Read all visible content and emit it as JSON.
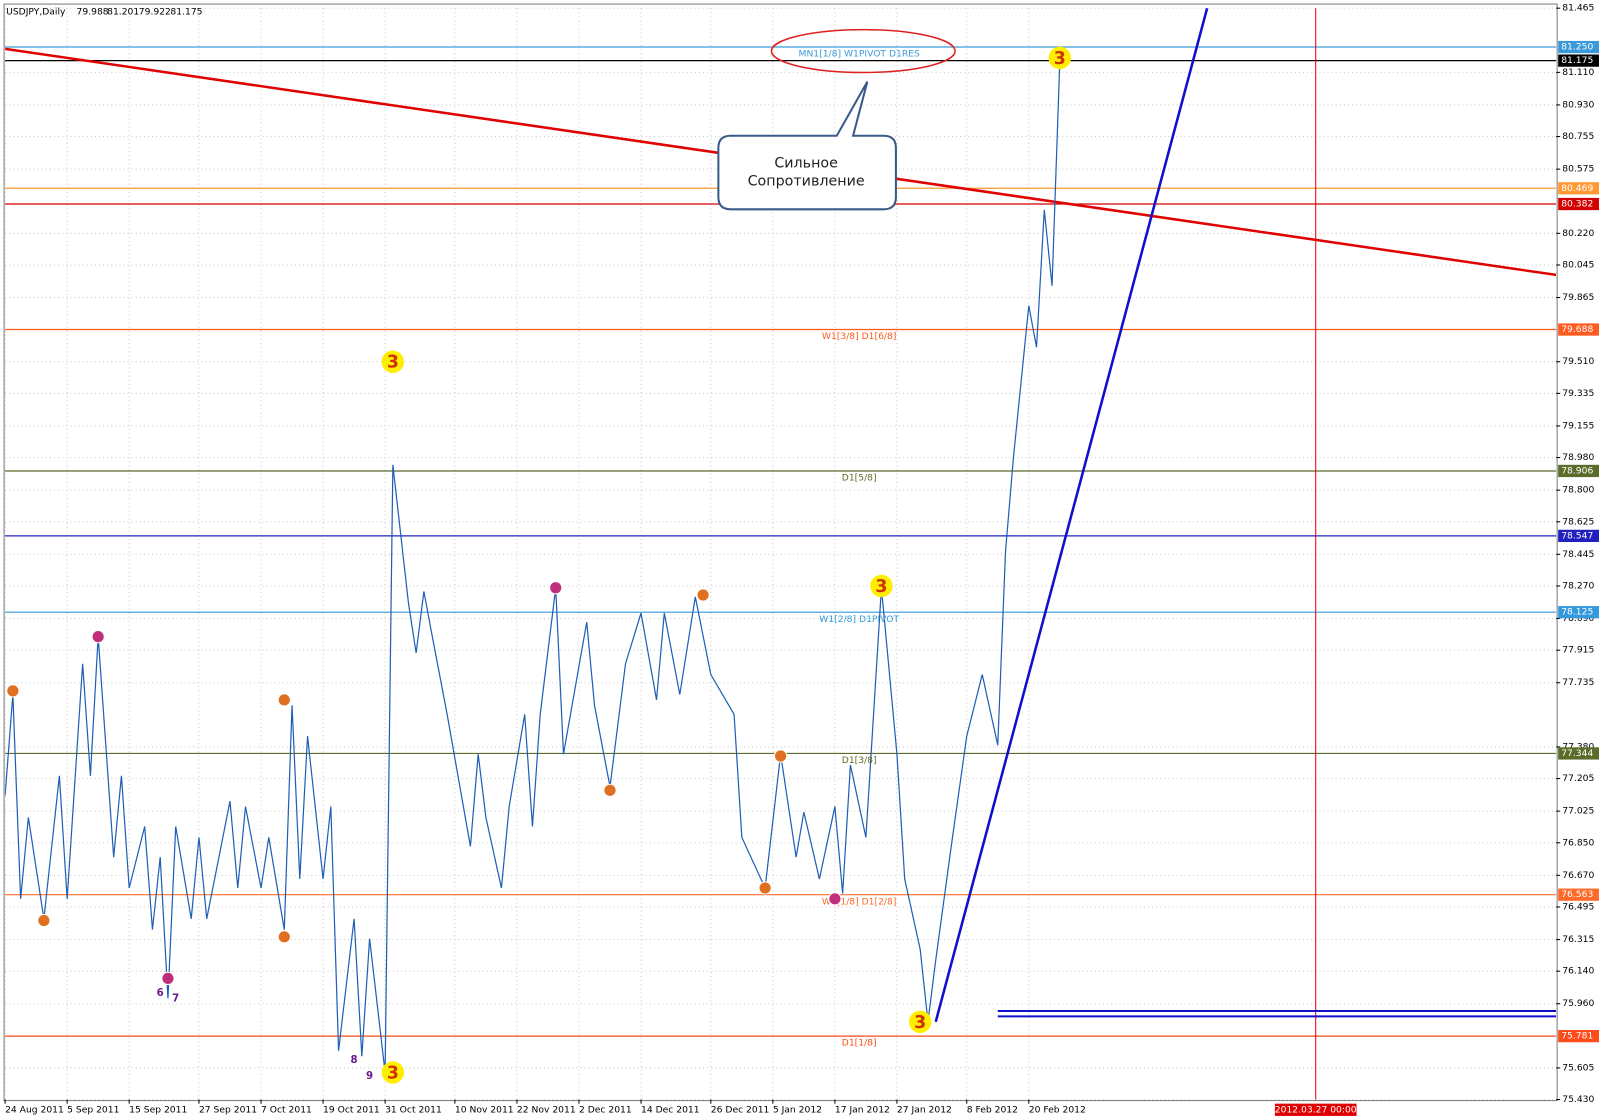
{
  "chart_data": {
    "type": "line",
    "symbol": "USDJPY,Daily",
    "ohlc": [
      79.988,
      81.201,
      79.922,
      81.175
    ],
    "color": "#1f5fb4",
    "x": [
      0,
      1,
      2,
      3,
      5,
      7,
      8,
      10,
      11,
      12,
      14,
      15,
      16,
      18,
      19,
      20,
      21,
      22,
      24,
      25,
      26,
      29,
      30,
      31,
      33,
      34,
      36,
      37,
      38,
      39,
      41,
      42,
      43,
      45,
      46,
      47,
      49,
      50,
      52,
      53,
      54,
      55,
      57,
      60,
      61,
      62,
      64,
      65,
      67,
      68,
      69,
      71,
      72,
      75,
      76,
      78,
      80,
      82,
      84,
      85,
      87,
      89,
      91,
      94,
      95,
      98,
      100,
      102,
      103,
      105,
      107,
      108,
      109,
      111,
      113,
      115,
      116,
      118,
      119,
      120,
      122,
      124,
      126,
      128,
      129,
      130,
      132,
      133,
      134,
      135,
      136
    ],
    "values": [
      77.11,
      77.67,
      76.54,
      76.99,
      76.43,
      77.22,
      76.54,
      77.84,
      77.22,
      77.99,
      76.77,
      77.22,
      76.6,
      76.94,
      76.37,
      76.77,
      75.99,
      76.94,
      76.43,
      76.88,
      76.43,
      77.08,
      76.6,
      77.05,
      76.6,
      76.88,
      76.37,
      77.61,
      76.65,
      77.44,
      76.65,
      77.05,
      75.7,
      76.43,
      75.67,
      76.32,
      75.58,
      78.94,
      78.18,
      77.9,
      78.24,
      78.01,
      77.56,
      76.83,
      77.34,
      76.99,
      76.6,
      77.05,
      77.56,
      76.94,
      77.56,
      78.26,
      77.34,
      78.07,
      77.61,
      77.16,
      77.84,
      78.12,
      77.64,
      78.12,
      77.67,
      78.21,
      77.78,
      77.56,
      76.88,
      76.6,
      77.34,
      76.77,
      77.02,
      76.65,
      77.05,
      76.57,
      77.28,
      76.88,
      78.26,
      77.34,
      76.65,
      76.26,
      75.86,
      76.2,
      76.83,
      77.44,
      77.78,
      77.39,
      78.46,
      78.97,
      79.82,
      79.59,
      80.35,
      79.93,
      81.17
    ],
    "xlim": [
      0,
      200
    ],
    "ylim": [
      75.43,
      81.465
    ],
    "grid": true,
    "yticks": [
      81.465,
      {
        "value": 81.11,
        "label": "81.110"
      },
      {
        "value": 80.93,
        "label": "80.930"
      },
      80.755,
      80.575,
      {
        "value": 80.22,
        "label": "80.220"
      },
      80.045,
      79.865,
      {
        "value": 79.51,
        "label": "79.510"
      },
      79.335,
      79.155,
      {
        "value": 78.98,
        "label": "78.980"
      },
      {
        "value": 78.8,
        "label": "78.800"
      },
      78.625,
      78.445,
      {
        "value": 78.27,
        "label": "78.270"
      },
      {
        "value": 78.09,
        "label": "78.090"
      },
      77.915,
      77.735,
      {
        "value": 77.38,
        "label": "77.380"
      },
      77.205,
      77.025,
      {
        "value": 76.85,
        "label": "76.850"
      },
      {
        "value": 76.67,
        "label": "76.670"
      },
      76.495,
      76.315,
      {
        "value": 76.14,
        "label": "76.140"
      },
      {
        "value": 75.96,
        "label": "75.960"
      },
      75.605,
      {
        "value": 75.43,
        "label": "75.430"
      }
    ],
    "xticks": [
      {
        "value": 0,
        "label": "24 Aug 2011"
      },
      {
        "value": 8,
        "label": "5 Sep 2011"
      },
      {
        "value": 16,
        "label": "15 Sep 2011"
      },
      {
        "value": 25,
        "label": "27 Sep 2011"
      },
      {
        "value": 33,
        "label": "7 Oct 2011"
      },
      {
        "value": 41,
        "label": "19 Oct 2011"
      },
      {
        "value": 49,
        "label": "31 Oct 2011"
      },
      {
        "value": 58,
        "label": "10 Nov 2011"
      },
      {
        "value": 66,
        "label": "22 Nov 2011"
      },
      {
        "value": 74,
        "label": "2 Dec 2011"
      },
      {
        "value": 82,
        "label": "14 Dec 2011"
      },
      {
        "value": 91,
        "label": "26 Dec 2011"
      },
      {
        "value": 99,
        "label": "5 Jan 2012"
      },
      {
        "value": 107,
        "label": "17 Jan 2012"
      },
      {
        "value": 115,
        "label": "27 Jan 2012"
      },
      {
        "value": 124,
        "label": "8 Feb 2012"
      },
      {
        "value": 132,
        "label": "20 Feb 2012"
      }
    ],
    "vline": {
      "value": 169,
      "label": "2012.03.27 00:00",
      "color": "#e00000"
    },
    "levels": [
      {
        "value": 81.25,
        "label": "81.250",
        "color": "#3a9ad9",
        "text": "MN1[1/8] W1PIVOT D1RES"
      },
      {
        "value": 81.175,
        "label": "81.175",
        "color": "#000000"
      },
      {
        "value": 80.469,
        "label": "80.469",
        "color": "#ff9933"
      },
      {
        "value": 80.382,
        "label": "80.382",
        "color": "#d40000"
      },
      {
        "value": 79.688,
        "label": "79.688",
        "color": "#ff5a1f",
        "text": "W1[3/8] D1[6/8]"
      },
      {
        "value": 78.906,
        "label": "78.906",
        "color": "#5a6b2a",
        "text": "D1[5/8]"
      },
      {
        "value": 78.547,
        "label": "78.547",
        "color": "#2020c0"
      },
      {
        "value": 78.125,
        "label": "78.125",
        "color": "#3399dd",
        "text": "W1[2/8] D1PIVOT"
      },
      {
        "value": 77.344,
        "label": "77.344",
        "color": "#5a6b2a",
        "text": "D1[3/8]"
      },
      {
        "value": 76.563,
        "label": "76.563",
        "color": "#ff6a2a",
        "text": "W1[1/8] D1[2/8]"
      },
      {
        "value": 75.781,
        "label": "75.781",
        "color": "#ff4a1a",
        "text": "D1[1/8]"
      }
    ],
    "trendlines": [
      {
        "color": "#e00000",
        "x": [
          0,
          200
        ],
        "y": [
          81.24,
          79.99
        ]
      },
      {
        "color": "#1010cc",
        "x": [
          120,
          155
        ],
        "y": [
          75.86,
          81.465
        ]
      }
    ],
    "segments": [
      {
        "color": "#1010cc",
        "x": [
          128,
          200
        ],
        "value": 75.92
      },
      {
        "color": "#1010cc",
        "x": [
          128,
          200
        ],
        "value": 75.89
      }
    ],
    "wave_labels": [
      {
        "x": 50,
        "y": 79.51,
        "text": "3"
      },
      {
        "x": 50,
        "y": 75.58,
        "text": "3"
      },
      {
        "x": 113,
        "y": 78.27,
        "text": "3"
      },
      {
        "x": 118,
        "y": 75.86,
        "text": "3"
      },
      {
        "x": 136,
        "y": 81.19,
        "text": "3"
      }
    ],
    "markers": [
      {
        "x": 1,
        "y": 77.69,
        "color": "#e07020"
      },
      {
        "x": 5,
        "y": 76.42,
        "color": "#e07020"
      },
      {
        "x": 12,
        "y": 77.99,
        "color": "#c0307a"
      },
      {
        "x": 21,
        "y": 76.1,
        "color": "#c0307a"
      },
      {
        "x": 36,
        "y": 77.64,
        "color": "#e07020"
      },
      {
        "x": 36,
        "y": 76.33,
        "color": "#e07020"
      },
      {
        "x": 71,
        "y": 78.26,
        "color": "#c0307a"
      },
      {
        "x": 78,
        "y": 77.14,
        "color": "#e07020"
      },
      {
        "x": 90,
        "y": 78.22,
        "color": "#e07020"
      },
      {
        "x": 98,
        "y": 76.6,
        "color": "#e07020"
      },
      {
        "x": 100,
        "y": 77.33,
        "color": "#e07020"
      },
      {
        "x": 107,
        "y": 76.54,
        "color": "#c0307a"
      }
    ],
    "digits": [
      {
        "x": 20,
        "y": 76.02,
        "text": "6"
      },
      {
        "x": 22,
        "y": 75.99,
        "text": "7"
      },
      {
        "x": 45,
        "y": 75.65,
        "text": "8"
      },
      {
        "x": 47,
        "y": 75.56,
        "text": "9"
      }
    ],
    "callout": [
      "Сильное",
      "Сопротивление"
    ]
  }
}
